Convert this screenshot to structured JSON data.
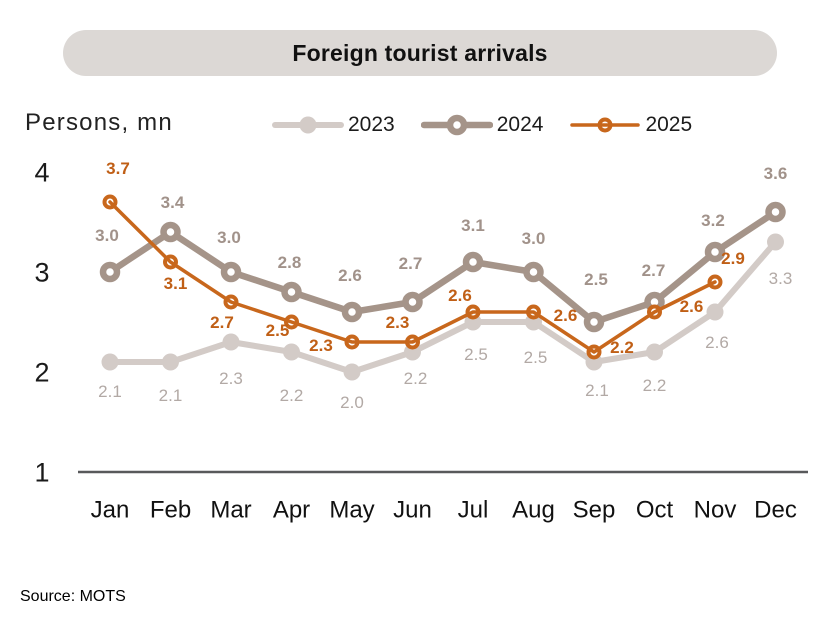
{
  "source": "Source: MOTS",
  "colors": {
    "background": "#ffffff",
    "title_bg": "#dcd8d5",
    "title_text": "#111111",
    "axis_text": "#1a1a1a",
    "axis_line": "#58595b",
    "series_2023": "#d3cbc7",
    "series_2024": "#a59489",
    "series_2025": "#c8671c",
    "label_2023": "#b2a9a5",
    "label_2024": "#a1928a",
    "label_2025": "#c05f16"
  },
  "chart_data": {
    "type": "line",
    "title": "Foreign tourist arrivals",
    "ylabel": "Persons, mn",
    "xlabel": "",
    "categories": [
      "Jan",
      "Feb",
      "Mar",
      "Apr",
      "May",
      "Jun",
      "Jul",
      "Aug",
      "Sep",
      "Oct",
      "Nov",
      "Dec"
    ],
    "y_ticks": [
      {
        "label": "4",
        "value": 4
      },
      {
        "label": "3",
        "value": 3
      },
      {
        "label": "2",
        "value": 2
      },
      {
        "label": "1",
        "value": 1
      }
    ],
    "ylim": [
      1,
      4
    ],
    "grid": false,
    "legend_position": "top",
    "data_labels": true,
    "series": [
      {
        "name": "2023",
        "values": [
          2.1,
          2.1,
          2.3,
          2.2,
          2.0,
          2.2,
          2.5,
          2.5,
          2.1,
          2.2,
          2.6,
          3.3
        ]
      },
      {
        "name": "2024",
        "values": [
          3.0,
          3.4,
          3.0,
          2.8,
          2.6,
          2.7,
          3.1,
          3.0,
          2.5,
          2.7,
          3.2,
          3.6
        ]
      },
      {
        "name": "2025",
        "values": [
          3.7,
          3.1,
          2.7,
          2.5,
          2.3,
          2.3,
          2.6,
          2.6,
          2.2,
          2.6,
          2.9
        ]
      }
    ]
  }
}
